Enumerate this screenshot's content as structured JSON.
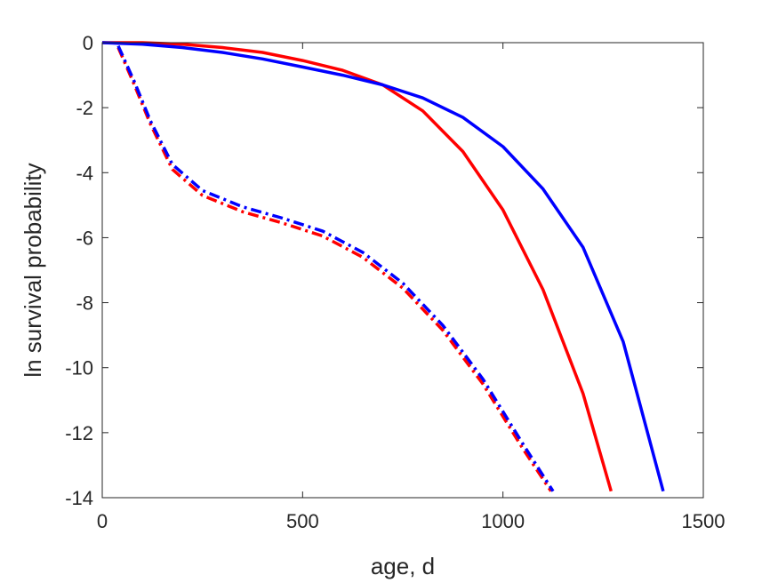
{
  "chart_data": {
    "type": "line",
    "title": "",
    "xlabel": "age, d",
    "ylabel": "ln survival probability",
    "xlim": [
      0,
      1500
    ],
    "ylim": [
      -14,
      0
    ],
    "xticks": [
      0,
      500,
      1000,
      1500
    ],
    "yticks": [
      0,
      -2,
      -4,
      -6,
      -8,
      -10,
      -12,
      -14
    ],
    "xtick_labels": [
      "0",
      "500",
      "1000",
      "1500"
    ],
    "ytick_labels": [
      "0",
      "-2",
      "-4",
      "-6",
      "-8",
      "-10",
      "-12",
      "-14"
    ],
    "grid": false,
    "legend": "none",
    "series": [
      {
        "color": "#ff0000",
        "style": "solid",
        "x": [
          0,
          100,
          200,
          300,
          400,
          500,
          600,
          700,
          800,
          900,
          1000,
          1100,
          1200,
          1270
        ],
        "y": [
          0,
          0,
          -0.05,
          -0.15,
          -0.3,
          -0.55,
          -0.85,
          -1.3,
          -2.1,
          -3.35,
          -5.15,
          -7.6,
          -10.8,
          -13.8
        ]
      },
      {
        "color": "#0000ff",
        "style": "solid",
        "x": [
          0,
          100,
          200,
          300,
          400,
          500,
          600,
          700,
          800,
          900,
          1000,
          1100,
          1200,
          1300,
          1400
        ],
        "y": [
          0,
          -0.05,
          -0.15,
          -0.3,
          -0.5,
          -0.75,
          -1.0,
          -1.3,
          -1.7,
          -2.3,
          -3.2,
          -4.5,
          -6.3,
          -9.2,
          -13.8
        ]
      },
      {
        "color": "#ff0000",
        "style": "dashdot",
        "x": [
          40,
          80,
          120,
          175,
          250,
          350,
          450,
          550,
          650,
          750,
          850,
          950,
          1050,
          1120
        ],
        "y": [
          -0.15,
          -1.3,
          -2.5,
          -3.9,
          -4.7,
          -5.2,
          -5.55,
          -5.95,
          -6.6,
          -7.55,
          -8.85,
          -10.5,
          -12.5,
          -13.8
        ]
      },
      {
        "color": "#0000ff",
        "style": "dashdot",
        "x": [
          40,
          80,
          120,
          175,
          250,
          350,
          450,
          550,
          650,
          750,
          850,
          950,
          1050,
          1125
        ],
        "y": [
          -0.1,
          -1.2,
          -2.4,
          -3.75,
          -4.55,
          -5.05,
          -5.4,
          -5.8,
          -6.45,
          -7.4,
          -8.7,
          -10.35,
          -12.35,
          -13.8
        ]
      }
    ]
  }
}
